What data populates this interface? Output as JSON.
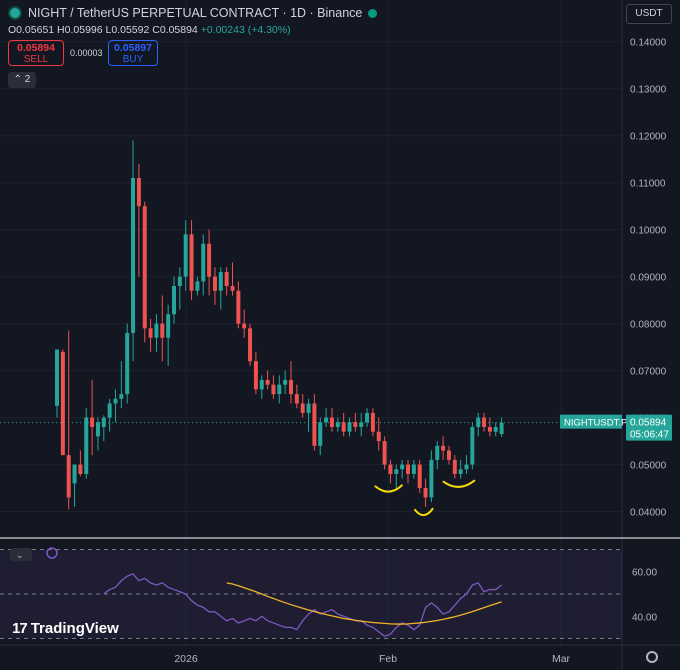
{
  "header": {
    "title": "NIGHT / TetherUS PERPETUAL CONTRACT · 1D · Binance",
    "open": "O0.05651",
    "high": "H0.05996",
    "low": "L0.05592",
    "close": "C0.05894",
    "change": "+0.00243 (+4.30%)"
  },
  "trade": {
    "sell_price": "0.05894",
    "sell_label": "SELL",
    "spread": "0.00003",
    "buy_price": "0.05897",
    "buy_label": "BUY"
  },
  "indicator_count": "2",
  "currency_button": "USDT",
  "price_label": {
    "symbol": "NIGHTUSDT.P",
    "price": "0.05894",
    "countdown": "05:06:47"
  },
  "brand": "TradingView",
  "colors": {
    "up": "#26a69a",
    "down": "#ef5350",
    "rsi": "#7e57c2",
    "rsi_ma": "#f0b429",
    "annotation": "#f5d90a"
  },
  "chart_data": [
    {
      "type": "candlestick",
      "ylim": [
        0.0365,
        0.1425
      ],
      "y_ticks": [
        "0.04000",
        "0.05000",
        "0.06000",
        "0.07000",
        "0.08000",
        "0.09000",
        "0.10000",
        "0.11000",
        "0.12000",
        "0.13000",
        "0.14000"
      ],
      "x_ticks": [
        "2026",
        "Feb",
        "Mar"
      ],
      "candles": [
        [
          0.0625,
          0.0745,
          0.06,
          0.0745
        ],
        [
          0.074,
          0.0745,
          0.052,
          0.052
        ],
        [
          0.052,
          0.0785,
          0.0405,
          0.043
        ],
        [
          0.046,
          0.05,
          0.041,
          0.05
        ],
        [
          0.05,
          0.053,
          0.0475,
          0.048
        ],
        [
          0.048,
          0.062,
          0.047,
          0.06
        ],
        [
          0.06,
          0.068,
          0.052,
          0.058
        ],
        [
          0.056,
          0.06,
          0.053,
          0.059
        ],
        [
          0.058,
          0.0605,
          0.055,
          0.06
        ],
        [
          0.06,
          0.064,
          0.057,
          0.063
        ],
        [
          0.063,
          0.066,
          0.059,
          0.064
        ],
        [
          0.064,
          0.072,
          0.062,
          0.065
        ],
        [
          0.065,
          0.08,
          0.063,
          0.078
        ],
        [
          0.078,
          0.119,
          0.072,
          0.111
        ],
        [
          0.111,
          0.114,
          0.09,
          0.105
        ],
        [
          0.105,
          0.106,
          0.076,
          0.079
        ],
        [
          0.079,
          0.081,
          0.074,
          0.077
        ],
        [
          0.077,
          0.082,
          0.074,
          0.08
        ],
        [
          0.08,
          0.086,
          0.072,
          0.077
        ],
        [
          0.077,
          0.084,
          0.071,
          0.082
        ],
        [
          0.082,
          0.09,
          0.08,
          0.088
        ],
        [
          0.088,
          0.092,
          0.083,
          0.09
        ],
        [
          0.09,
          0.102,
          0.087,
          0.099
        ],
        [
          0.099,
          0.102,
          0.085,
          0.087
        ],
        [
          0.087,
          0.09,
          0.086,
          0.089
        ],
        [
          0.089,
          0.099,
          0.086,
          0.097
        ],
        [
          0.097,
          0.1,
          0.086,
          0.09
        ],
        [
          0.09,
          0.092,
          0.084,
          0.087
        ],
        [
          0.087,
          0.092,
          0.083,
          0.091
        ],
        [
          0.091,
          0.092,
          0.086,
          0.088
        ],
        [
          0.088,
          0.093,
          0.086,
          0.087
        ],
        [
          0.087,
          0.089,
          0.079,
          0.08
        ],
        [
          0.08,
          0.083,
          0.077,
          0.079
        ],
        [
          0.079,
          0.08,
          0.071,
          0.072
        ],
        [
          0.072,
          0.074,
          0.065,
          0.066
        ],
        [
          0.066,
          0.069,
          0.064,
          0.068
        ],
        [
          0.068,
          0.07,
          0.066,
          0.067
        ],
        [
          0.067,
          0.069,
          0.064,
          0.065
        ],
        [
          0.065,
          0.069,
          0.063,
          0.067
        ],
        [
          0.067,
          0.07,
          0.065,
          0.068
        ],
        [
          0.068,
          0.072,
          0.063,
          0.065
        ],
        [
          0.065,
          0.067,
          0.062,
          0.063
        ],
        [
          0.063,
          0.065,
          0.06,
          0.061
        ],
        [
          0.061,
          0.064,
          0.057,
          0.063
        ],
        [
          0.063,
          0.065,
          0.053,
          0.054
        ],
        [
          0.054,
          0.06,
          0.052,
          0.059
        ],
        [
          0.059,
          0.062,
          0.058,
          0.06
        ],
        [
          0.06,
          0.062,
          0.057,
          0.058
        ],
        [
          0.058,
          0.06,
          0.057,
          0.059
        ],
        [
          0.059,
          0.061,
          0.056,
          0.057
        ],
        [
          0.057,
          0.06,
          0.056,
          0.059
        ],
        [
          0.059,
          0.061,
          0.057,
          0.058
        ],
        [
          0.058,
          0.061,
          0.056,
          0.059
        ],
        [
          0.059,
          0.062,
          0.058,
          0.061
        ],
        [
          0.061,
          0.062,
          0.056,
          0.057
        ],
        [
          0.057,
          0.06,
          0.053,
          0.055
        ],
        [
          0.055,
          0.056,
          0.049,
          0.05
        ],
        [
          0.05,
          0.051,
          0.046,
          0.048
        ],
        [
          0.048,
          0.05,
          0.045,
          0.049
        ],
        [
          0.049,
          0.051,
          0.047,
          0.05
        ],
        [
          0.05,
          0.051,
          0.046,
          0.048
        ],
        [
          0.048,
          0.051,
          0.047,
          0.05
        ],
        [
          0.05,
          0.051,
          0.044,
          0.045
        ],
        [
          0.045,
          0.047,
          0.041,
          0.043
        ],
        [
          0.043,
          0.053,
          0.042,
          0.051
        ],
        [
          0.051,
          0.055,
          0.049,
          0.054
        ],
        [
          0.054,
          0.056,
          0.051,
          0.053
        ],
        [
          0.053,
          0.054,
          0.05,
          0.051
        ],
        [
          0.051,
          0.052,
          0.047,
          0.048
        ],
        [
          0.048,
          0.051,
          0.047,
          0.049
        ],
        [
          0.049,
          0.052,
          0.048,
          0.05
        ],
        [
          0.05,
          0.059,
          0.049,
          0.058
        ],
        [
          0.058,
          0.061,
          0.056,
          0.06
        ],
        [
          0.06,
          0.061,
          0.057,
          0.058
        ],
        [
          0.058,
          0.06,
          0.056,
          0.057
        ],
        [
          0.057,
          0.059,
          0.056,
          0.058
        ],
        [
          0.0565,
          0.06,
          0.0559,
          0.0589
        ]
      ],
      "last_price": 0.05894
    },
    {
      "type": "line",
      "ylim": [
        28,
        72
      ],
      "y_ticks": [
        "60.00",
        "40.00"
      ],
      "bands": [
        30,
        50,
        70
      ],
      "series": [
        {
          "values": [
            50,
            52,
            53,
            56,
            58,
            59,
            56,
            57,
            55,
            54,
            55,
            53,
            52,
            51,
            50,
            47,
            45,
            44,
            42,
            42,
            40,
            38,
            39,
            37,
            38,
            39,
            38,
            40,
            38,
            37,
            36,
            35,
            35,
            34,
            38,
            41,
            43,
            41,
            42,
            43,
            41,
            40,
            39,
            38,
            38,
            36,
            35,
            33,
            31,
            32,
            35,
            37,
            36,
            34,
            36,
            44,
            46,
            44,
            41,
            42,
            45,
            48,
            50,
            54,
            55,
            51,
            52,
            52,
            54
          ]
        },
        {
          "values": [
            55,
            54.5,
            53.7,
            52.8,
            51.9,
            51.0,
            50.0,
            48.9,
            48.0,
            47.0,
            46.1,
            45.2,
            44.4,
            43.6,
            42.8,
            42.1,
            41.4,
            40.8,
            40.2,
            39.6,
            39.0,
            38.6,
            38.2,
            37.8,
            37.5,
            37.2,
            37.0,
            36.8,
            36.6,
            36.5,
            36.5,
            36.6,
            36.8,
            37.0,
            37.3,
            37.7,
            38.1,
            38.6,
            39.2,
            39.8,
            40.5,
            41.3,
            42.1,
            43.0,
            43.9,
            44.8,
            45.6,
            46.5
          ]
        }
      ]
    }
  ]
}
